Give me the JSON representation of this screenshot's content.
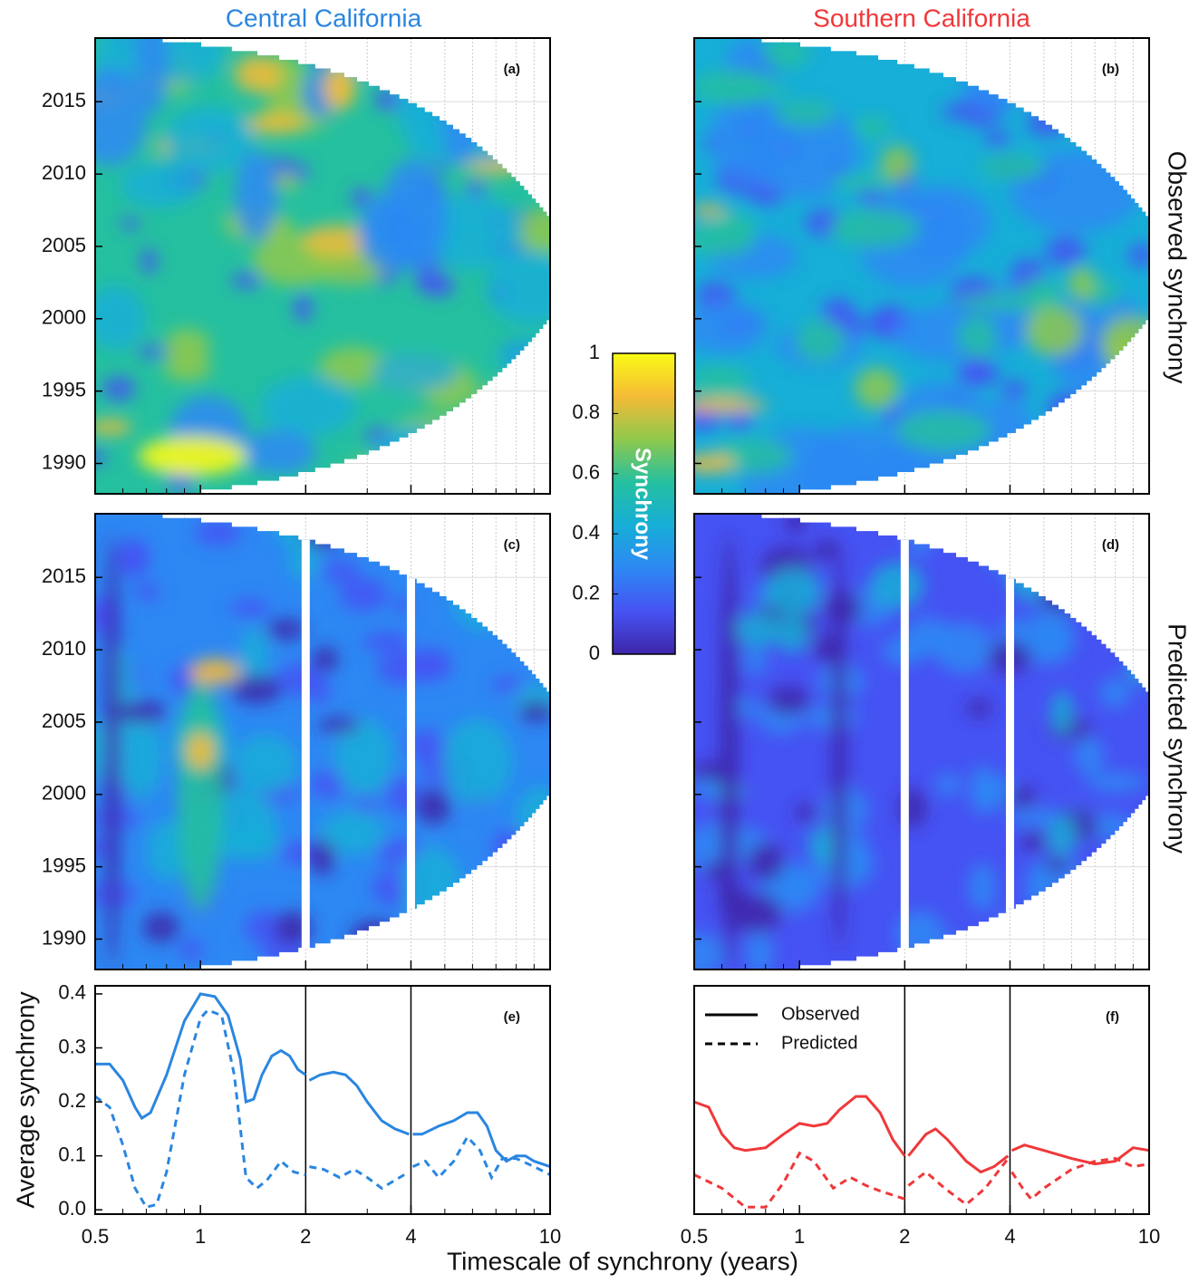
{
  "column_titles": [
    "Central California",
    "Southern California"
  ],
  "row_titles": [
    "Observed synchrony",
    "Predicted synchrony"
  ],
  "x_label": "Timescale of synchrony (years)",
  "colorbar": {
    "label": "Synchrony",
    "lim": [
      0,
      1
    ],
    "ticks": [
      0,
      0.2,
      0.4,
      0.6,
      0.8,
      1
    ],
    "colors": [
      "#3e26a8",
      "#4653f3",
      "#2d88f3",
      "#17aed7",
      "#25c0a0",
      "#8fc84c",
      "#f5bb36",
      "#f9fb15"
    ]
  },
  "chart_data": [
    {
      "type": "heatmap",
      "panel_label": "(a)",
      "xscale": "log",
      "xlim": [
        0.5,
        10
      ],
      "xticks": [
        0.5,
        1,
        2,
        4,
        10
      ],
      "xminorticks": [
        0.6,
        0.7,
        0.8,
        0.9,
        3,
        5,
        6,
        7,
        8,
        9
      ],
      "ylim": [
        1987.9,
        2019.4
      ],
      "yticks": [
        1990,
        1995,
        2000,
        2005,
        2010,
        2015
      ],
      "grid": true,
      "ytick_labels": true,
      "xtick_labels": false,
      "breaks": []
    },
    {
      "type": "heatmap",
      "panel_label": "(b)",
      "xscale": "log",
      "xlim": [
        0.5,
        10
      ],
      "xticks": [
        0.5,
        1,
        2,
        4,
        10
      ],
      "xminorticks": [
        0.6,
        0.7,
        0.8,
        0.9,
        3,
        5,
        6,
        7,
        8,
        9
      ],
      "ylim": [
        1987.9,
        2019.4
      ],
      "yticks": [
        1990,
        1995,
        2000,
        2005,
        2010,
        2015
      ],
      "grid": true,
      "ytick_labels": false,
      "xtick_labels": false,
      "breaks": []
    },
    {
      "type": "heatmap",
      "panel_label": "(c)",
      "xscale": "log",
      "xlim": [
        0.5,
        10
      ],
      "xticks": [
        0.5,
        1,
        2,
        4,
        10
      ],
      "xminorticks": [
        0.6,
        0.7,
        0.8,
        0.9,
        3,
        5,
        6,
        7,
        8,
        9
      ],
      "ylim": [
        1987.9,
        2019.4
      ],
      "yticks": [
        1990,
        1995,
        2000,
        2005,
        2010,
        2015
      ],
      "grid": true,
      "ytick_labels": true,
      "xtick_labels": false,
      "breaks": [
        2,
        4
      ]
    },
    {
      "type": "heatmap",
      "panel_label": "(d)",
      "xscale": "log",
      "xlim": [
        0.5,
        10
      ],
      "xticks": [
        0.5,
        1,
        2,
        4,
        10
      ],
      "xminorticks": [
        0.6,
        0.7,
        0.8,
        0.9,
        3,
        5,
        6,
        7,
        8,
        9
      ],
      "ylim": [
        1987.9,
        2019.4
      ],
      "yticks": [
        1990,
        1995,
        2000,
        2005,
        2010,
        2015
      ],
      "grid": true,
      "ytick_labels": false,
      "xtick_labels": false,
      "breaks": [
        2,
        4
      ]
    },
    {
      "type": "line",
      "panel_label": "(e)",
      "y_label": "Average synchrony",
      "xscale": "log",
      "xlim": [
        0.5,
        10
      ],
      "xticks": [
        0.5,
        1,
        2,
        4,
        10
      ],
      "xminorticks": [
        0.6,
        0.7,
        0.8,
        0.9,
        3,
        5,
        6,
        7,
        8,
        9
      ],
      "ylim": [
        -0.008,
        0.415
      ],
      "yticks": [
        {
          "value": 0,
          "label": "0.0"
        },
        0.1,
        0.2,
        0.3,
        0.4
      ],
      "ytick_labels": true,
      "xtick_labels": true,
      "breaks": [
        2,
        4
      ],
      "series": [
        {
          "color": "#2a86e0",
          "dash": false,
          "x": [
            0.5,
            0.55,
            0.6,
            0.65,
            0.68,
            0.72,
            0.8,
            0.9,
            1.0,
            1.1,
            1.2,
            1.3,
            1.35,
            1.42,
            1.5,
            1.6,
            1.7,
            1.8,
            1.9,
            2.0,
            null,
            2.05,
            2.2,
            2.4,
            2.6,
            2.8,
            3.0,
            3.3,
            3.6,
            3.95,
            null,
            4.05,
            4.3,
            4.8,
            5.3,
            5.8,
            6.2,
            6.6,
            7.0,
            7.5,
            8,
            8.5,
            9,
            10
          ],
          "values": [
            0.27,
            0.27,
            0.24,
            0.19,
            0.17,
            0.18,
            0.25,
            0.35,
            0.4,
            0.395,
            0.36,
            0.28,
            0.2,
            0.205,
            0.25,
            0.285,
            0.295,
            0.285,
            0.26,
            0.25,
            null,
            0.24,
            0.25,
            0.255,
            0.25,
            0.23,
            0.2,
            0.165,
            0.15,
            0.14,
            null,
            0.14,
            0.14,
            0.155,
            0.165,
            0.18,
            0.18,
            0.155,
            0.11,
            0.09,
            0.1,
            0.1,
            0.09,
            0.08
          ]
        },
        {
          "color": "#2a86e0",
          "dash": true,
          "x": [
            0.5,
            0.55,
            0.6,
            0.65,
            0.7,
            0.75,
            0.8,
            0.9,
            1.0,
            1.05,
            1.15,
            1.25,
            1.35,
            1.45,
            1.55,
            1.7,
            1.85,
            2.0,
            null,
            2.05,
            2.25,
            2.5,
            2.75,
            3.0,
            3.3,
            3.6,
            3.95,
            null,
            4.05,
            4.4,
            4.8,
            5.3,
            5.8,
            6.3,
            6.8,
            7.3,
            8,
            9,
            10
          ],
          "values": [
            0.21,
            0.19,
            0.12,
            0.04,
            0.005,
            0.01,
            0.07,
            0.25,
            0.355,
            0.37,
            0.36,
            0.25,
            0.06,
            0.04,
            0.055,
            0.09,
            0.07,
            0.065,
            null,
            0.08,
            0.075,
            0.06,
            0.075,
            0.06,
            0.04,
            0.055,
            0.07,
            null,
            0.08,
            0.09,
            0.06,
            0.09,
            0.135,
            0.11,
            0.06,
            0.095,
            0.095,
            0.08,
            0.065
          ]
        }
      ]
    },
    {
      "type": "line",
      "panel_label": "(f)",
      "xscale": "log",
      "xlim": [
        0.5,
        10
      ],
      "xticks": [
        0.5,
        1,
        2,
        4,
        10
      ],
      "xminorticks": [
        0.6,
        0.7,
        0.8,
        0.9,
        3,
        5,
        6,
        7,
        8,
        9
      ],
      "ylim": [
        -0.008,
        0.415
      ],
      "ytick_labels": false,
      "xtick_labels": true,
      "breaks": [
        2,
        4
      ],
      "legend": "upper left",
      "series": [
        {
          "name": "Observed",
          "color": "#f0383a",
          "dash": false,
          "x": [
            0.5,
            0.55,
            0.6,
            0.65,
            0.7,
            0.8,
            0.9,
            1.0,
            1.1,
            1.2,
            1.3,
            1.45,
            1.55,
            1.7,
            1.85,
            2.0,
            null,
            2.05,
            2.3,
            2.45,
            2.65,
            3.0,
            3.3,
            3.6,
            3.95,
            null,
            4.05,
            4.4,
            5,
            6,
            7,
            8,
            9,
            10
          ],
          "values": [
            0.2,
            0.19,
            0.14,
            0.115,
            0.11,
            0.115,
            0.14,
            0.16,
            0.155,
            0.16,
            0.185,
            0.21,
            0.21,
            0.18,
            0.13,
            0.1,
            null,
            0.1,
            0.14,
            0.15,
            0.13,
            0.09,
            0.07,
            0.08,
            0.1,
            null,
            0.11,
            0.12,
            0.11,
            0.095,
            0.085,
            0.09,
            0.115,
            0.11
          ]
        },
        {
          "name": "Predicted",
          "color": "#f0383a",
          "dash": true,
          "x": [
            0.5,
            0.6,
            0.7,
            0.8,
            0.9,
            1.0,
            1.1,
            1.25,
            1.4,
            1.55,
            1.7,
            2.0,
            null,
            2.05,
            2.3,
            2.6,
            3.0,
            3.4,
            3.95,
            null,
            4.05,
            4.4,
            4.6,
            5,
            6,
            7,
            8,
            9,
            10
          ],
          "values": [
            0.065,
            0.04,
            0.005,
            0.005,
            0.05,
            0.105,
            0.09,
            0.04,
            0.06,
            0.045,
            0.035,
            0.02,
            null,
            0.045,
            0.07,
            0.04,
            0.01,
            0.04,
            0.095,
            null,
            0.07,
            0.035,
            0.02,
            0.04,
            0.075,
            0.09,
            0.095,
            0.08,
            0.085
          ]
        }
      ]
    }
  ]
}
